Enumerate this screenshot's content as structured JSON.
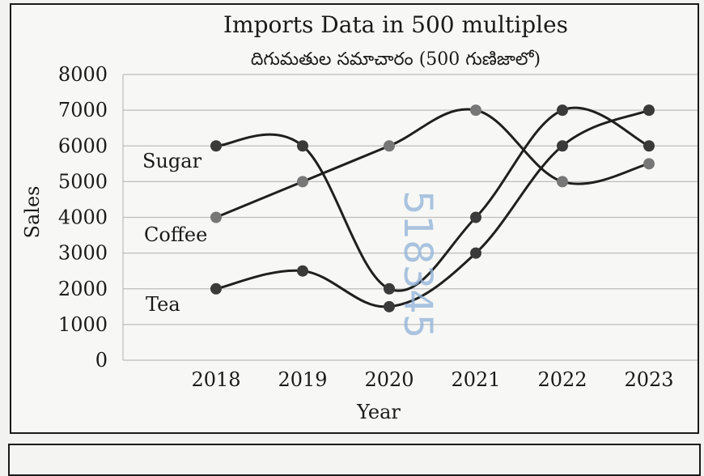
{
  "chart_data": {
    "type": "line",
    "title": "Imports Data in 500 multiples",
    "subtitle": "దిగుమతుల సమాచారం (500 గుణిజాలో)",
    "xlabel": "Year",
    "ylabel": "Sales",
    "categories": [
      "2018",
      "2019",
      "2020",
      "2021",
      "2022",
      "2023"
    ],
    "y_ticks": [
      "0",
      "1000",
      "2000",
      "3000",
      "4000",
      "5000",
      "6000",
      "7000",
      "8000"
    ],
    "ylim": [
      0,
      8000
    ],
    "grid": "horizontal",
    "series": [
      {
        "name": "Sugar",
        "values": [
          6000,
          6000,
          2000,
          4000,
          7000,
          6000
        ]
      },
      {
        "name": "Coffee",
        "values": [
          4000,
          5000,
          6000,
          7000,
          5000,
          5500
        ]
      },
      {
        "name": "Tea",
        "values": [
          2000,
          2500,
          1500,
          3000,
          6000,
          7000
        ]
      }
    ],
    "colors": {
      "line": "#1f1f1f",
      "marker": "#3a3a3a",
      "marker_alt": "#777777",
      "grid": "#bdbdbd"
    }
  },
  "watermark": "518345"
}
